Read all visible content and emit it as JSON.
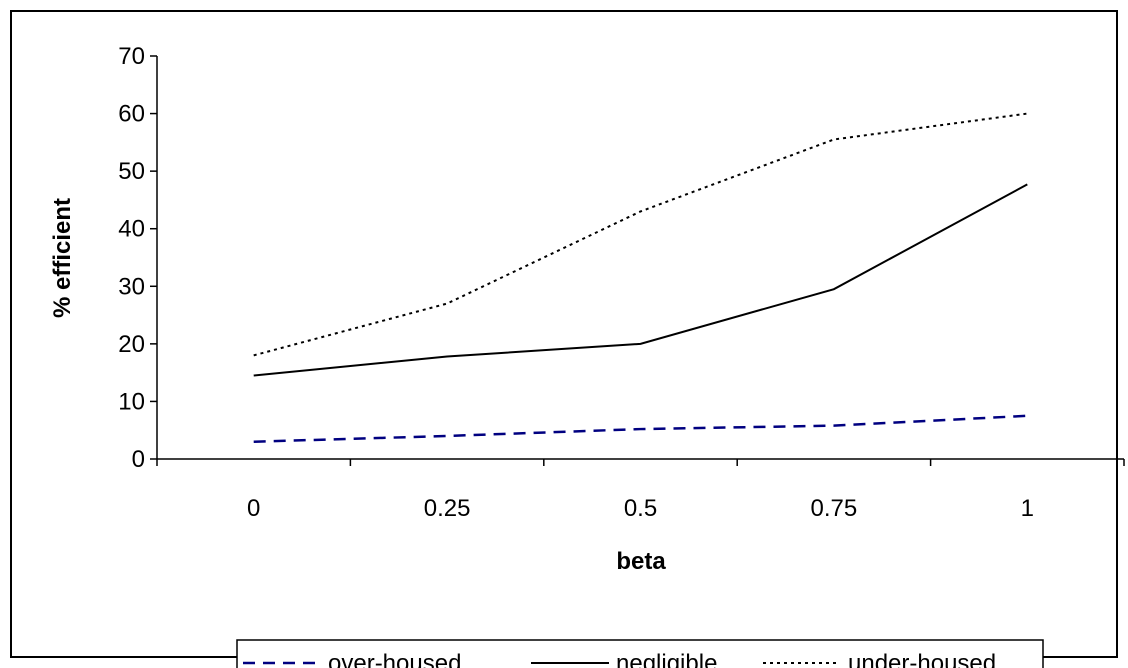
{
  "chart_data": {
    "type": "line",
    "title": "",
    "xlabel": "beta",
    "ylabel": "% efficient",
    "categories": [
      "0",
      "0.25",
      "0.5",
      "0.75",
      "1"
    ],
    "x": [
      0,
      0.25,
      0.5,
      0.75,
      1
    ],
    "ylim": [
      0,
      70
    ],
    "yticks": [
      0,
      10,
      20,
      30,
      40,
      50,
      60,
      70
    ],
    "grid": false,
    "legend_position": "bottom",
    "series": [
      {
        "name": "over-housed",
        "values": [
          3,
          4,
          5.2,
          5.8,
          7.5
        ],
        "color": "#000080",
        "dash": "dashed"
      },
      {
        "name": "negligible",
        "values": [
          14.5,
          17.8,
          20,
          29.5,
          47.7
        ],
        "color": "#000000",
        "dash": "solid"
      },
      {
        "name": "under-housed",
        "values": [
          18,
          27,
          43,
          55.5,
          60
        ],
        "color": "#000000",
        "dash": "dotted"
      }
    ]
  }
}
